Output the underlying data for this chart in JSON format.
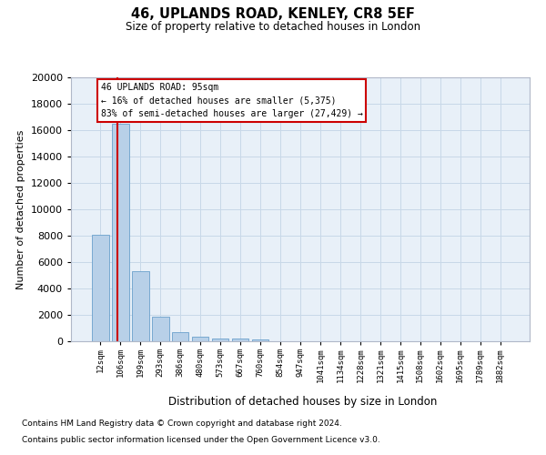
{
  "title1": "46, UPLANDS ROAD, KENLEY, CR8 5EF",
  "title2": "Size of property relative to detached houses in London",
  "xlabel": "Distribution of detached houses by size in London",
  "ylabel": "Number of detached properties",
  "categories": [
    "12sqm",
    "106sqm",
    "199sqm",
    "293sqm",
    "386sqm",
    "480sqm",
    "573sqm",
    "667sqm",
    "760sqm",
    "854sqm",
    "947sqm",
    "1041sqm",
    "1134sqm",
    "1228sqm",
    "1321sqm",
    "1415sqm",
    "1508sqm",
    "1602sqm",
    "1695sqm",
    "1789sqm",
    "1882sqm"
  ],
  "values": [
    8050,
    16500,
    5300,
    1850,
    700,
    320,
    200,
    195,
    130,
    0,
    0,
    0,
    0,
    0,
    0,
    0,
    0,
    0,
    0,
    0,
    0
  ],
  "bar_color": "#b8d0e8",
  "bar_edge_color": "#6aa0cc",
  "grid_color": "#c8d8e8",
  "background_color": "#e8f0f8",
  "vline_color": "#cc0000",
  "vline_pos": 0.84,
  "annotation_text": "46 UPLANDS ROAD: 95sqm\n← 16% of detached houses are smaller (5,375)\n83% of semi-detached houses are larger (27,429) →",
  "annotation_box_facecolor": "#ffffff",
  "annotation_box_edgecolor": "#cc0000",
  "footnote1": "Contains HM Land Registry data © Crown copyright and database right 2024.",
  "footnote2": "Contains public sector information licensed under the Open Government Licence v3.0.",
  "ylim": [
    0,
    20000
  ],
  "yticks": [
    0,
    2000,
    4000,
    6000,
    8000,
    10000,
    12000,
    14000,
    16000,
    18000,
    20000
  ]
}
